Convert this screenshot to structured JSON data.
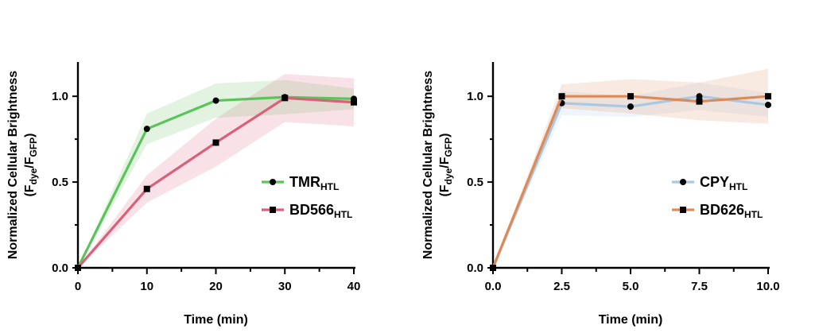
{
  "chart_data": [
    {
      "type": "line",
      "xlabel": "Time (min)",
      "ylabel": "Normalized Cellular Brightness",
      "ylabel_sub": {
        "open": "(F",
        "dye": "dye",
        "mid": "/F",
        "gfp": "GFP",
        "close": ")"
      },
      "xlim": [
        0,
        40
      ],
      "ylim": [
        0,
        1.2
      ],
      "x_ticks": [
        "0",
        "10",
        "20",
        "30",
        "40"
      ],
      "y_ticks": [
        "0.0",
        "0.5",
        "1.0"
      ],
      "legend_position": "center-right",
      "series": [
        {
          "name": "TMR",
          "subscript": "HTL",
          "color": "#5cc35a",
          "marker": "circle",
          "x": [
            0,
            10,
            20,
            30,
            40
          ],
          "y": [
            0.0,
            0.81,
            0.975,
            0.995,
            0.985
          ],
          "band": [
            0.0,
            0.09,
            0.1,
            0.1,
            0.06
          ]
        },
        {
          "name": "BD566",
          "subscript": "HTL",
          "color": "#d9607a",
          "marker": "square",
          "x": [
            0,
            10,
            20,
            30,
            40
          ],
          "y": [
            0.0,
            0.46,
            0.73,
            0.99,
            0.965
          ],
          "band": [
            0.0,
            0.08,
            0.14,
            0.14,
            0.14
          ]
        }
      ]
    },
    {
      "type": "line",
      "xlabel": "Time (min)",
      "ylabel": "Normalized Cellular Brightness",
      "ylabel_sub": {
        "open": "(F",
        "dye": "dye",
        "mid": "/F",
        "gfp": "GFP",
        "close": ")"
      },
      "xlim": [
        0,
        10
      ],
      "ylim": [
        0,
        1.2
      ],
      "x_ticks": [
        "0.0",
        "2.5",
        "5.0",
        "7.5",
        "10.0"
      ],
      "y_ticks": [
        "0.0",
        "0.5",
        "1.0"
      ],
      "legend_position": "center-right",
      "series": [
        {
          "name": "CPY",
          "subscript": "HTL",
          "color": "#a9c8e2",
          "marker": "circle",
          "x": [
            0,
            2.5,
            5.0,
            7.5,
            10.0
          ],
          "y": [
            0.0,
            0.96,
            0.94,
            1.0,
            0.95
          ],
          "band": [
            0.0,
            0.07,
            0.06,
            0.08,
            0.07
          ]
        },
        {
          "name": "BD626",
          "subscript": "HTL",
          "color": "#dc8a58",
          "marker": "square",
          "x": [
            0,
            2.5,
            5.0,
            7.5,
            10.0
          ],
          "y": [
            0.0,
            1.0,
            1.0,
            0.97,
            1.0
          ],
          "band": [
            0.0,
            0.07,
            0.1,
            0.11,
            0.16
          ]
        }
      ]
    }
  ]
}
